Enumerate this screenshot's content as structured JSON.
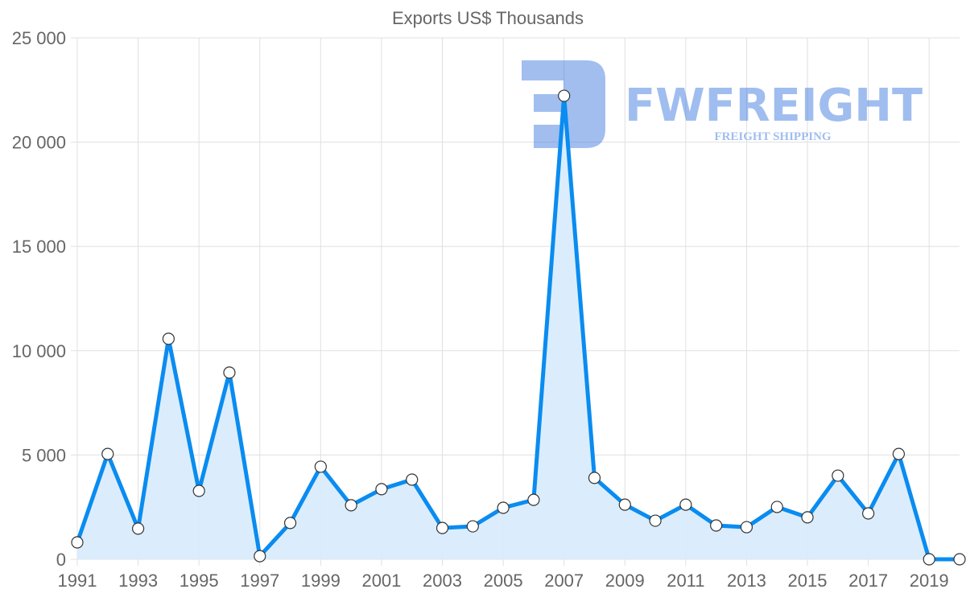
{
  "chart_data": {
    "type": "line",
    "title": "Exports US$ Thousands",
    "xlabel": "",
    "ylabel": "",
    "x": [
      1991,
      1992,
      1993,
      1994,
      1995,
      1996,
      1997,
      1998,
      1999,
      2000,
      2001,
      2002,
      2003,
      2004,
      2005,
      2006,
      2007,
      2008,
      2009,
      2010,
      2011,
      2012,
      2013,
      2014,
      2015,
      2016,
      2017,
      2018,
      2019,
      2020
    ],
    "series": [
      {
        "name": "Exports US$ Thousands",
        "values": [
          810,
          5050,
          1470,
          10570,
          3280,
          8950,
          150,
          1740,
          4440,
          2590,
          3360,
          3820,
          1500,
          1580,
          2470,
          2850,
          22220,
          3900,
          2620,
          1850,
          2620,
          1620,
          1540,
          2510,
          2010,
          4010,
          2200,
          5050,
          0,
          0
        ]
      }
    ],
    "x_tick_labels": [
      "1991",
      "1993",
      "1995",
      "1997",
      "1999",
      "2001",
      "2003",
      "2005",
      "2007",
      "2009",
      "2011",
      "2013",
      "2015",
      "2017",
      "2019"
    ],
    "y_ticks": [
      0,
      5000,
      10000,
      15000,
      20000,
      25000
    ],
    "y_tick_labels": [
      "0",
      "5 000",
      "10 000",
      "15 000",
      "20 000",
      "25 000"
    ],
    "ylim": [
      0,
      25000
    ],
    "grid": true,
    "legend": "none",
    "colors": {
      "line": "#0a8cf0",
      "fill": "#d9ecfd",
      "point_fill": "#ffffff",
      "point_stroke": "#333333",
      "grid": "#e0e0e0"
    }
  },
  "watermark": {
    "brand": "FWFREIGHT",
    "tagline": "FREIGHT SHIPPING"
  }
}
